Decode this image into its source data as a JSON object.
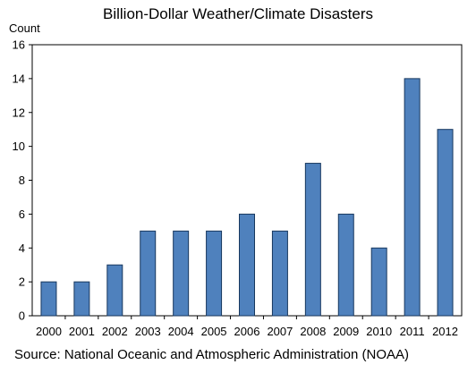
{
  "chart_data": {
    "type": "bar",
    "title": "Billion-Dollar Weather/Climate Disasters",
    "ylabel": "Count",
    "xlabel": "",
    "categories": [
      "2000",
      "2001",
      "2002",
      "2003",
      "2004",
      "2005",
      "2006",
      "2007",
      "2008",
      "2009",
      "2010",
      "2011",
      "2012"
    ],
    "values": [
      2,
      2,
      3,
      5,
      5,
      5,
      6,
      5,
      9,
      6,
      4,
      14,
      11
    ],
    "ylim": [
      0,
      16
    ],
    "yticks": [
      0,
      2,
      4,
      6,
      8,
      10,
      12,
      14,
      16
    ],
    "grid": false,
    "legend": "none",
    "bar_color": "#4f81bd",
    "bar_edge_color": "#17375e",
    "source": "Source: National Oceanic and Atmospheric Administration (NOAA)"
  }
}
